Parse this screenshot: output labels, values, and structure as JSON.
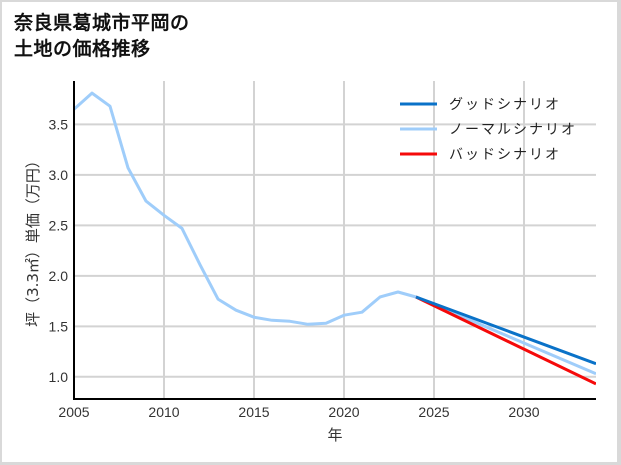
{
  "title_line1": "奈良県葛城市平岡の",
  "title_line2": "土地の価格推移",
  "chart_data": {
    "type": "line",
    "title": "奈良県葛城市平岡の土地の価格推移",
    "xlabel": "年",
    "ylabel": "坪（3.3㎡）単価（万円）",
    "xlim": [
      2005,
      2034
    ],
    "ylim": [
      0.78,
      3.93
    ],
    "xticks": [
      2005,
      2010,
      2015,
      2020,
      2025,
      2030
    ],
    "yticks": [
      1.0,
      1.5,
      2.0,
      2.5,
      3.0,
      3.5
    ],
    "ytick_labels": [
      "1.0",
      "1.5",
      "2.0",
      "2.5",
      "3.0",
      "3.5"
    ],
    "grid": true,
    "legend_position": "upper right",
    "series": [
      {
        "name": "グッドシナリオ",
        "color": "#0a72c8",
        "x": [
          2024,
          2034
        ],
        "values": [
          1.79,
          1.13
        ]
      },
      {
        "name": "ノーマルシナリオ",
        "color": "#9fcdfa",
        "x": [
          2005,
          2006,
          2007,
          2008,
          2009,
          2010,
          2011,
          2012,
          2013,
          2014,
          2015,
          2016,
          2017,
          2018,
          2019,
          2020,
          2021,
          2022,
          2023,
          2024,
          2034
        ],
        "values": [
          3.65,
          3.81,
          3.68,
          3.07,
          2.74,
          2.6,
          2.47,
          2.11,
          1.77,
          1.66,
          1.59,
          1.56,
          1.55,
          1.52,
          1.53,
          1.61,
          1.64,
          1.79,
          1.84,
          1.79,
          1.03
        ]
      },
      {
        "name": "バッドシナリオ",
        "color": "#f50a0a",
        "x": [
          2024,
          2034
        ],
        "values": [
          1.79,
          0.93
        ]
      }
    ]
  }
}
